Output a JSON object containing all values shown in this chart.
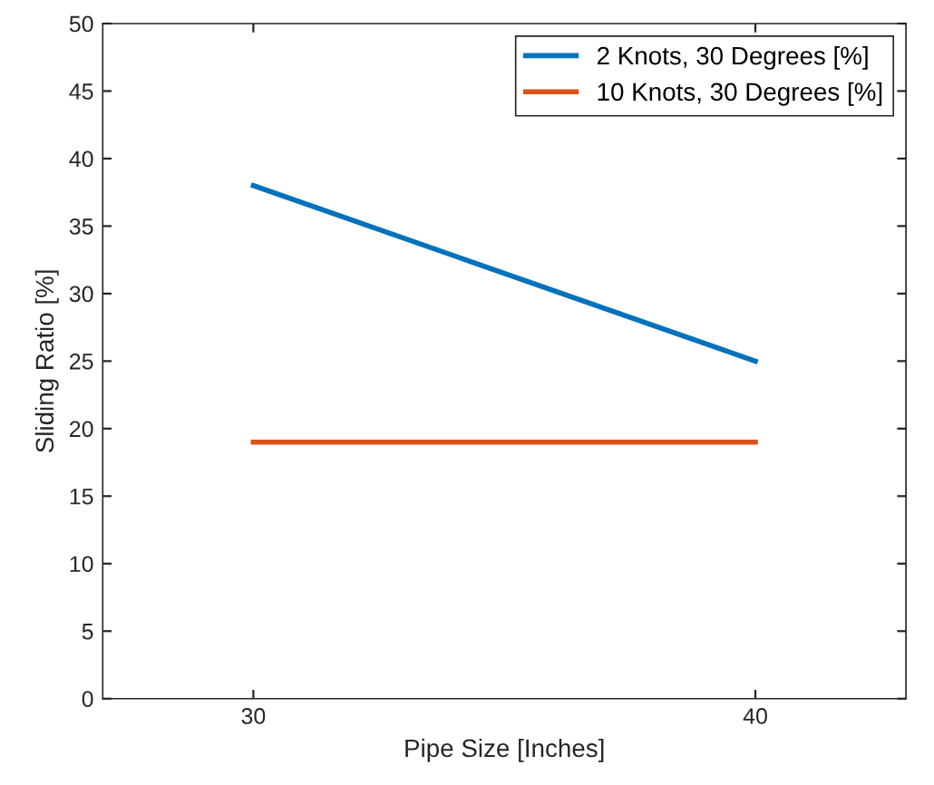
{
  "chart_data": {
    "type": "line",
    "xlabel": "Pipe Size [Inches]",
    "ylabel": "Sliding Ratio [%]",
    "x": [
      30,
      40
    ],
    "series": [
      {
        "name": "2 Knots, 30 Degrees [%]",
        "color": "#0072bd",
        "values": [
          38,
          25
        ]
      },
      {
        "name": "10 Knots, 30 Degrees [%]",
        "color": "#d95319",
        "values": [
          19,
          19
        ]
      }
    ],
    "xlim": [
      27,
      43
    ],
    "xticks": [
      30,
      40
    ],
    "ylim": [
      0,
      50
    ],
    "yticks": [
      0,
      5,
      10,
      15,
      20,
      25,
      30,
      35,
      40,
      45,
      50
    ],
    "grid": false,
    "legend": "top right",
    "marker": "none",
    "line_style": "solid"
  }
}
